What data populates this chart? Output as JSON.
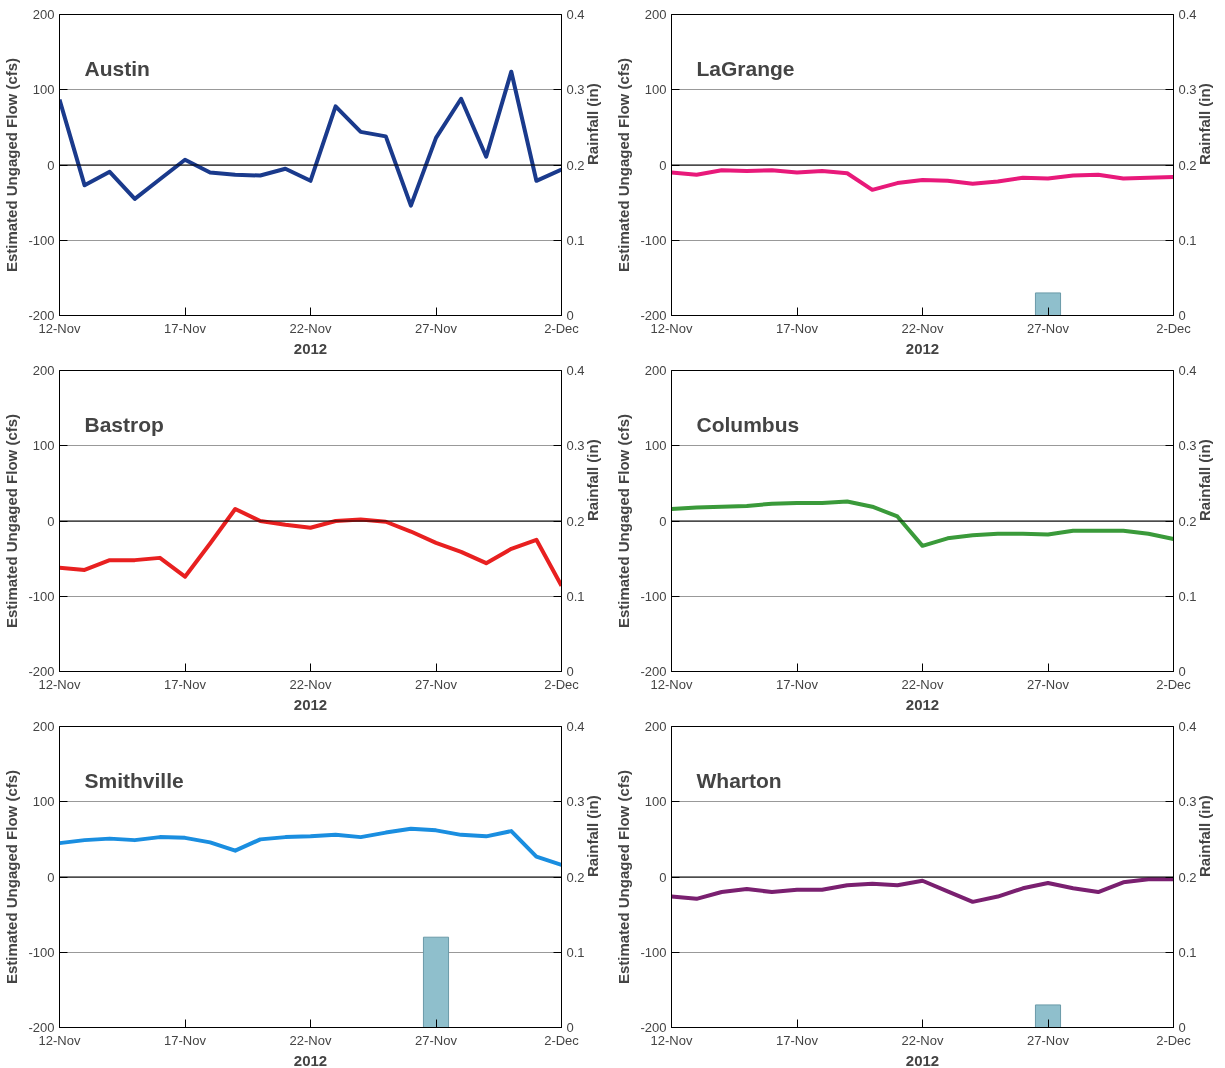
{
  "chart_data": [
    {
      "type": "line",
      "title": "Austin",
      "xlabel": "2012",
      "ylabel": "Estimated Ungaged Flow (cfs)",
      "y2label": "Rainfall (in)",
      "x": [
        "2012-11-12",
        "2012-11-13",
        "2012-11-14",
        "2012-11-15",
        "2012-11-16",
        "2012-11-17",
        "2012-11-18",
        "2012-11-19",
        "2012-11-20",
        "2012-11-21",
        "2012-11-22",
        "2012-11-23",
        "2012-11-24",
        "2012-11-25",
        "2012-11-26",
        "2012-11-27",
        "2012-11-28",
        "2012-11-29",
        "2012-11-30",
        "2012-12-01",
        "2012-12-02"
      ],
      "series": [
        {
          "color": "#1a3a8c",
          "values": [
            87,
            -27,
            -9,
            -45,
            -19,
            7,
            -10,
            -13,
            -14,
            -5,
            -21,
            78,
            44,
            38,
            -54,
            36,
            88,
            11,
            124,
            -21,
            -6
          ]
        }
      ],
      "xlim": [
        "2012-11-12",
        "2012-12-02"
      ],
      "xticks": [
        {
          "value": "2012-11-12",
          "label": "12-Nov"
        },
        {
          "value": "2012-11-17",
          "label": "17-Nov"
        },
        {
          "value": "2012-11-22",
          "label": "22-Nov"
        },
        {
          "value": "2012-11-27",
          "label": "27-Nov"
        },
        {
          "value": "2012-12-02",
          "label": "2-Dec"
        }
      ],
      "ylim": [
        -200,
        200
      ],
      "yticks": [
        -200,
        -100,
        0,
        100,
        200
      ],
      "y2lim": [
        0,
        0.4
      ],
      "y2ticks": [
        0,
        0.1,
        0.2,
        0.3,
        0.4
      ],
      "grid": "y",
      "ref_lines": [
        {
          "axis": "y",
          "value": 0
        }
      ]
    },
    {
      "type": "line",
      "title": "LaGrange",
      "xlabel": "2012",
      "ylabel": "Estimated Ungaged Flow (cfs)",
      "y2label": "Rainfall (in)",
      "x": [
        "2012-11-12",
        "2012-11-13",
        "2012-11-14",
        "2012-11-15",
        "2012-11-16",
        "2012-11-17",
        "2012-11-18",
        "2012-11-19",
        "2012-11-20",
        "2012-11-21",
        "2012-11-22",
        "2012-11-23",
        "2012-11-24",
        "2012-11-25",
        "2012-11-26",
        "2012-11-27",
        "2012-11-28",
        "2012-11-29",
        "2012-11-30",
        "2012-12-01",
        "2012-12-02"
      ],
      "series": [
        {
          "color": "#e8197a",
          "values": [
            -10,
            -13,
            -7,
            -8,
            -7,
            -10,
            -8,
            -11,
            -33,
            -24,
            -20,
            -21,
            -25,
            -22,
            -17,
            -18,
            -14,
            -13,
            -18,
            -17,
            -16
          ]
        },
        {
          "type": "bar",
          "axis": "y2",
          "color": "#8fbfcc",
          "x": [
            "2012-11-27"
          ],
          "values": [
            0.03
          ]
        }
      ],
      "xlim": [
        "2012-11-12",
        "2012-12-02"
      ],
      "xticks": [
        {
          "value": "2012-11-12",
          "label": "12-Nov"
        },
        {
          "value": "2012-11-17",
          "label": "17-Nov"
        },
        {
          "value": "2012-11-22",
          "label": "22-Nov"
        },
        {
          "value": "2012-11-27",
          "label": "27-Nov"
        },
        {
          "value": "2012-12-02",
          "label": "2-Dec"
        }
      ],
      "ylim": [
        -200,
        200
      ],
      "yticks": [
        -200,
        -100,
        0,
        100,
        200
      ],
      "y2lim": [
        0,
        0.4
      ],
      "y2ticks": [
        0,
        0.1,
        0.2,
        0.3,
        0.4
      ],
      "grid": "y",
      "ref_lines": [
        {
          "axis": "y",
          "value": 0
        }
      ]
    },
    {
      "type": "line",
      "title": "Bastrop",
      "xlabel": "2012",
      "ylabel": "Estimated Ungaged Flow (cfs)",
      "y2label": "Rainfall (in)",
      "x": [
        "2012-11-12",
        "2012-11-13",
        "2012-11-14",
        "2012-11-15",
        "2012-11-16",
        "2012-11-17",
        "2012-11-18",
        "2012-11-19",
        "2012-11-20",
        "2012-11-21",
        "2012-11-22",
        "2012-11-23",
        "2012-11-24",
        "2012-11-25",
        "2012-11-26",
        "2012-11-27",
        "2012-11-28",
        "2012-11-29",
        "2012-11-30",
        "2012-12-01",
        "2012-12-02"
      ],
      "series": [
        {
          "color": "#e82020",
          "values": [
            -62,
            -65,
            -52,
            -52,
            -49,
            -74,
            -30,
            16,
            0,
            -5,
            -9,
            0,
            2,
            -1,
            -14,
            -29,
            -41,
            -56,
            -37,
            -25,
            -86
          ]
        }
      ],
      "xlim": [
        "2012-11-12",
        "2012-12-02"
      ],
      "xticks": [
        {
          "value": "2012-11-12",
          "label": "12-Nov"
        },
        {
          "value": "2012-11-17",
          "label": "17-Nov"
        },
        {
          "value": "2012-11-22",
          "label": "22-Nov"
        },
        {
          "value": "2012-11-27",
          "label": "27-Nov"
        },
        {
          "value": "2012-12-02",
          "label": "2-Dec"
        }
      ],
      "ylim": [
        -200,
        200
      ],
      "yticks": [
        -200,
        -100,
        0,
        100,
        200
      ],
      "y2lim": [
        0,
        0.4
      ],
      "y2ticks": [
        0,
        0.1,
        0.2,
        0.3,
        0.4
      ],
      "grid": "y",
      "ref_lines": [
        {
          "axis": "y",
          "value": 0
        }
      ]
    },
    {
      "type": "line",
      "title": "Columbus",
      "xlabel": "2012",
      "ylabel": "Estimated Ungaged Flow (cfs)",
      "y2label": "Rainfall (in)",
      "x": [
        "2012-11-12",
        "2012-11-13",
        "2012-11-14",
        "2012-11-15",
        "2012-11-16",
        "2012-11-17",
        "2012-11-18",
        "2012-11-19",
        "2012-11-20",
        "2012-11-21",
        "2012-11-22",
        "2012-11-23",
        "2012-11-24",
        "2012-11-25",
        "2012-11-26",
        "2012-11-27",
        "2012-11-28",
        "2012-11-29",
        "2012-11-30",
        "2012-12-01",
        "2012-12-02"
      ],
      "series": [
        {
          "color": "#3a9a3a",
          "values": [
            16,
            18,
            19,
            20,
            23,
            24,
            24,
            26,
            19,
            6,
            -33,
            -23,
            -19,
            -17,
            -17,
            -18,
            -13,
            -13,
            -13,
            -17,
            -24
          ]
        }
      ],
      "xlim": [
        "2012-11-12",
        "2012-12-02"
      ],
      "xticks": [
        {
          "value": "2012-11-12",
          "label": "12-Nov"
        },
        {
          "value": "2012-11-17",
          "label": "17-Nov"
        },
        {
          "value": "2012-11-22",
          "label": "22-Nov"
        },
        {
          "value": "2012-11-27",
          "label": "27-Nov"
        },
        {
          "value": "2012-12-02",
          "label": "2-Dec"
        }
      ],
      "ylim": [
        -200,
        200
      ],
      "yticks": [
        -200,
        -100,
        0,
        100,
        200
      ],
      "y2lim": [
        0,
        0.4
      ],
      "y2ticks": [
        0,
        0.1,
        0.2,
        0.3,
        0.4
      ],
      "grid": "y",
      "ref_lines": [
        {
          "axis": "y",
          "value": 0
        }
      ]
    },
    {
      "type": "line",
      "title": "Smithville",
      "xlabel": "2012",
      "ylabel": "Estimated Ungaged Flow (cfs)",
      "y2label": "Rainfall (in)",
      "x": [
        "2012-11-12",
        "2012-11-13",
        "2012-11-14",
        "2012-11-15",
        "2012-11-16",
        "2012-11-17",
        "2012-11-18",
        "2012-11-19",
        "2012-11-20",
        "2012-11-21",
        "2012-11-22",
        "2012-11-23",
        "2012-11-24",
        "2012-11-25",
        "2012-11-26",
        "2012-11-27",
        "2012-11-28",
        "2012-11-29",
        "2012-11-30",
        "2012-12-01",
        "2012-12-02"
      ],
      "series": [
        {
          "color": "#1a8ee0",
          "values": [
            45,
            49,
            51,
            49,
            53,
            52,
            46,
            35,
            50,
            53,
            54,
            56,
            53,
            59,
            64,
            62,
            56,
            54,
            61,
            27,
            16
          ]
        },
        {
          "type": "bar",
          "axis": "y2",
          "color": "#8fbfcc",
          "x": [
            "2012-11-27"
          ],
          "values": [
            0.12
          ]
        }
      ],
      "xlim": [
        "2012-11-12",
        "2012-12-02"
      ],
      "xticks": [
        {
          "value": "2012-11-12",
          "label": "12-Nov"
        },
        {
          "value": "2012-11-17",
          "label": "17-Nov"
        },
        {
          "value": "2012-11-22",
          "label": "22-Nov"
        },
        {
          "value": "2012-11-27",
          "label": "27-Nov"
        },
        {
          "value": "2012-12-02",
          "label": "2-Dec"
        }
      ],
      "ylim": [
        -200,
        200
      ],
      "yticks": [
        -200,
        -100,
        0,
        100,
        200
      ],
      "y2lim": [
        0,
        0.4
      ],
      "y2ticks": [
        0,
        0.1,
        0.2,
        0.3,
        0.4
      ],
      "grid": "y",
      "ref_lines": [
        {
          "axis": "y",
          "value": 0
        }
      ]
    },
    {
      "type": "line",
      "title": "Wharton",
      "xlabel": "2012",
      "ylabel": "Estimated Ungaged Flow (cfs)",
      "y2label": "Rainfall (in)",
      "x": [
        "2012-11-12",
        "2012-11-13",
        "2012-11-14",
        "2012-11-15",
        "2012-11-16",
        "2012-11-17",
        "2012-11-18",
        "2012-11-19",
        "2012-11-20",
        "2012-11-21",
        "2012-11-22",
        "2012-11-23",
        "2012-11-24",
        "2012-11-25",
        "2012-11-26",
        "2012-11-27",
        "2012-11-28",
        "2012-11-29",
        "2012-11-30",
        "2012-12-01",
        "2012-12-02"
      ],
      "series": [
        {
          "color": "#7a2070",
          "values": [
            -26,
            -29,
            -20,
            -16,
            -20,
            -17,
            -17,
            -11,
            -9,
            -11,
            -5,
            -19,
            -33,
            -26,
            -15,
            -8,
            -15,
            -20,
            -7,
            -3,
            -3
          ]
        },
        {
          "type": "bar",
          "axis": "y2",
          "color": "#8fbfcc",
          "x": [
            "2012-11-27"
          ],
          "values": [
            0.03
          ]
        }
      ],
      "xlim": [
        "2012-11-12",
        "2012-12-02"
      ],
      "xticks": [
        {
          "value": "2012-11-12",
          "label": "12-Nov"
        },
        {
          "value": "2012-11-17",
          "label": "17-Nov"
        },
        {
          "value": "2012-11-22",
          "label": "22-Nov"
        },
        {
          "value": "2012-11-27",
          "label": "27-Nov"
        },
        {
          "value": "2012-12-02",
          "label": "2-Dec"
        }
      ],
      "ylim": [
        -200,
        200
      ],
      "yticks": [
        -200,
        -100,
        0,
        100,
        200
      ],
      "y2lim": [
        0,
        0.4
      ],
      "y2ticks": [
        0,
        0.1,
        0.2,
        0.3,
        0.4
      ],
      "grid": "y",
      "ref_lines": [
        {
          "axis": "y",
          "value": 0
        }
      ]
    }
  ]
}
